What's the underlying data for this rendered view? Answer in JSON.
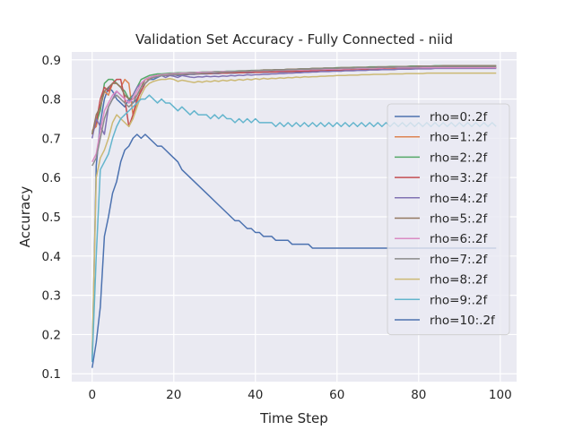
{
  "chart_data": {
    "type": "line",
    "title": "Validation Set Accuracy - Fully Connected - niid",
    "xlabel": "Time Step",
    "ylabel": "Accuracy",
    "xlim": [
      -5,
      104
    ],
    "ylim": [
      0.08,
      0.92
    ],
    "xticks": [
      0,
      20,
      40,
      60,
      80,
      100
    ],
    "yticks": [
      0.1,
      0.2,
      0.3,
      0.4,
      0.5,
      0.6,
      0.7,
      0.8,
      0.9
    ],
    "grid": true,
    "legend_position": "right",
    "series": [
      {
        "name": "rho=0:.2f",
        "color": "#4c72b0",
        "values": [
          0.13,
          0.63,
          0.74,
          0.8,
          0.83,
          0.82,
          0.8,
          0.79,
          0.78,
          0.8,
          0.79,
          0.8,
          0.82,
          0.84,
          0.85,
          0.85,
          0.855,
          0.86,
          0.86,
          0.86,
          0.862,
          0.86,
          0.862,
          0.862,
          0.863,
          0.863,
          0.864,
          0.864,
          0.864,
          0.865,
          0.865,
          0.865,
          0.866,
          0.866,
          0.866,
          0.866,
          0.867,
          0.867,
          0.867,
          0.867,
          0.868,
          0.868,
          0.868,
          0.868,
          0.869,
          0.869,
          0.869,
          0.869,
          0.87,
          0.87,
          0.87,
          0.87,
          0.871,
          0.871,
          0.871,
          0.871,
          0.872,
          0.872,
          0.872,
          0.872,
          0.873,
          0.873,
          0.873,
          0.873,
          0.874,
          0.874,
          0.874,
          0.874,
          0.875,
          0.875,
          0.875,
          0.875,
          0.876,
          0.876,
          0.876,
          0.876,
          0.877,
          0.877,
          0.877,
          0.877,
          0.878,
          0.878,
          0.878,
          0.878,
          0.879,
          0.879,
          0.879,
          0.879,
          0.88,
          0.88,
          0.88,
          0.88,
          0.88,
          0.88,
          0.88,
          0.88,
          0.88,
          0.88,
          0.88,
          0.88
        ]
      },
      {
        "name": "rho=1:.2f",
        "color": "#dd8452",
        "values": [
          0.72,
          0.73,
          0.78,
          0.82,
          0.81,
          0.84,
          0.84,
          0.83,
          0.85,
          0.84,
          0.76,
          0.79,
          0.83,
          0.85,
          0.85,
          0.858,
          0.86,
          0.862,
          0.864,
          0.864,
          0.865,
          0.865,
          0.866,
          0.866,
          0.867,
          0.867,
          0.868,
          0.868,
          0.868,
          0.869,
          0.869,
          0.869,
          0.87,
          0.87,
          0.87,
          0.87,
          0.871,
          0.871,
          0.871,
          0.871,
          0.872,
          0.872,
          0.872,
          0.872,
          0.873,
          0.873,
          0.873,
          0.873,
          0.874,
          0.874,
          0.874,
          0.874,
          0.875,
          0.875,
          0.875,
          0.875,
          0.876,
          0.876,
          0.876,
          0.876,
          0.877,
          0.877,
          0.877,
          0.877,
          0.878,
          0.878,
          0.878,
          0.878,
          0.879,
          0.879,
          0.879,
          0.879,
          0.88,
          0.88,
          0.88,
          0.88,
          0.88,
          0.88,
          0.88,
          0.88,
          0.88,
          0.88,
          0.88,
          0.88,
          0.88,
          0.88,
          0.88,
          0.88,
          0.88,
          0.88,
          0.88,
          0.88,
          0.88,
          0.88,
          0.88,
          0.88,
          0.88,
          0.88,
          0.88,
          0.88
        ]
      },
      {
        "name": "rho=2:.2f",
        "color": "#55a868",
        "values": [
          0.715,
          0.74,
          0.77,
          0.84,
          0.85,
          0.85,
          0.84,
          0.83,
          0.82,
          0.8,
          0.81,
          0.83,
          0.85,
          0.855,
          0.86,
          0.862,
          0.864,
          0.864,
          0.865,
          0.866,
          0.866,
          0.867,
          0.867,
          0.867,
          0.868,
          0.868,
          0.868,
          0.869,
          0.869,
          0.869,
          0.87,
          0.87,
          0.87,
          0.871,
          0.871,
          0.871,
          0.872,
          0.872,
          0.872,
          0.873,
          0.873,
          0.873,
          0.874,
          0.874,
          0.874,
          0.875,
          0.875,
          0.875,
          0.876,
          0.876,
          0.876,
          0.877,
          0.877,
          0.877,
          0.878,
          0.878,
          0.878,
          0.879,
          0.879,
          0.879,
          0.88,
          0.88,
          0.88,
          0.88,
          0.881,
          0.881,
          0.881,
          0.881,
          0.882,
          0.882,
          0.882,
          0.882,
          0.882,
          0.883,
          0.883,
          0.883,
          0.883,
          0.883,
          0.884,
          0.884,
          0.884,
          0.884,
          0.884,
          0.884,
          0.885,
          0.885,
          0.885,
          0.885,
          0.885,
          0.885,
          0.885,
          0.885,
          0.885,
          0.885,
          0.885,
          0.885,
          0.885,
          0.885,
          0.885,
          0.885
        ]
      },
      {
        "name": "rho=3:.2f",
        "color": "#c44e52",
        "values": [
          0.71,
          0.74,
          0.8,
          0.83,
          0.82,
          0.84,
          0.85,
          0.85,
          0.8,
          0.73,
          0.76,
          0.8,
          0.82,
          0.84,
          0.85,
          0.856,
          0.858,
          0.86,
          0.86,
          0.861,
          0.862,
          0.862,
          0.863,
          0.863,
          0.864,
          0.864,
          0.864,
          0.865,
          0.865,
          0.865,
          0.866,
          0.866,
          0.866,
          0.866,
          0.867,
          0.867,
          0.867,
          0.867,
          0.868,
          0.868,
          0.868,
          0.868,
          0.869,
          0.869,
          0.869,
          0.869,
          0.87,
          0.87,
          0.87,
          0.87,
          0.871,
          0.871,
          0.871,
          0.871,
          0.872,
          0.872,
          0.872,
          0.872,
          0.873,
          0.873,
          0.873,
          0.873,
          0.874,
          0.874,
          0.874,
          0.874,
          0.875,
          0.875,
          0.875,
          0.875,
          0.876,
          0.876,
          0.876,
          0.876,
          0.877,
          0.877,
          0.877,
          0.877,
          0.878,
          0.878,
          0.878,
          0.878,
          0.878,
          0.879,
          0.879,
          0.879,
          0.879,
          0.879,
          0.88,
          0.88,
          0.88,
          0.88,
          0.88,
          0.88,
          0.88,
          0.88,
          0.88,
          0.88,
          0.88,
          0.88
        ]
      },
      {
        "name": "rho=4:.2f",
        "color": "#8172b3",
        "values": [
          0.7,
          0.75,
          0.73,
          0.71,
          0.78,
          0.8,
          0.82,
          0.81,
          0.8,
          0.79,
          0.81,
          0.83,
          0.84,
          0.85,
          0.855,
          0.858,
          0.86,
          0.86,
          0.855,
          0.86,
          0.858,
          0.855,
          0.86,
          0.858,
          0.856,
          0.855,
          0.857,
          0.856,
          0.858,
          0.857,
          0.858,
          0.857,
          0.859,
          0.858,
          0.86,
          0.859,
          0.861,
          0.86,
          0.862,
          0.861,
          0.862,
          0.862,
          0.863,
          0.863,
          0.864,
          0.864,
          0.865,
          0.865,
          0.866,
          0.866,
          0.867,
          0.867,
          0.868,
          0.868,
          0.869,
          0.869,
          0.87,
          0.87,
          0.87,
          0.871,
          0.871,
          0.871,
          0.872,
          0.872,
          0.872,
          0.873,
          0.873,
          0.873,
          0.874,
          0.874,
          0.874,
          0.875,
          0.875,
          0.875,
          0.875,
          0.876,
          0.876,
          0.876,
          0.876,
          0.877,
          0.877,
          0.877,
          0.877,
          0.877,
          0.878,
          0.878,
          0.878,
          0.878,
          0.878,
          0.878,
          0.878,
          0.878,
          0.878,
          0.878,
          0.878,
          0.878,
          0.878,
          0.878,
          0.878,
          0.878
        ]
      },
      {
        "name": "rho=5:.2f",
        "color": "#937860",
        "values": [
          0.71,
          0.76,
          0.78,
          0.82,
          0.83,
          0.84,
          0.84,
          0.83,
          0.81,
          0.8,
          0.8,
          0.81,
          0.83,
          0.85,
          0.855,
          0.857,
          0.859,
          0.86,
          0.862,
          0.862,
          0.863,
          0.863,
          0.864,
          0.864,
          0.865,
          0.865,
          0.866,
          0.866,
          0.867,
          0.867,
          0.868,
          0.868,
          0.869,
          0.869,
          0.87,
          0.87,
          0.871,
          0.871,
          0.872,
          0.872,
          0.873,
          0.873,
          0.874,
          0.874,
          0.874,
          0.875,
          0.875,
          0.875,
          0.876,
          0.876,
          0.876,
          0.877,
          0.877,
          0.877,
          0.878,
          0.878,
          0.878,
          0.879,
          0.879,
          0.879,
          0.879,
          0.88,
          0.88,
          0.88,
          0.88,
          0.881,
          0.881,
          0.881,
          0.881,
          0.881,
          0.882,
          0.882,
          0.882,
          0.882,
          0.882,
          0.883,
          0.883,
          0.883,
          0.883,
          0.883,
          0.884,
          0.884,
          0.884,
          0.884,
          0.884,
          0.884,
          0.885,
          0.885,
          0.885,
          0.885,
          0.885,
          0.885,
          0.885,
          0.885,
          0.885,
          0.885,
          0.885,
          0.885,
          0.885,
          0.885
        ]
      },
      {
        "name": "rho=6:.2f",
        "color": "#da8bc3",
        "values": [
          0.64,
          0.66,
          0.72,
          0.77,
          0.79,
          0.81,
          0.82,
          0.81,
          0.8,
          0.79,
          0.8,
          0.82,
          0.84,
          0.85,
          0.855,
          0.858,
          0.86,
          0.862,
          0.863,
          0.864,
          0.865,
          0.865,
          0.866,
          0.866,
          0.867,
          0.867,
          0.868,
          0.868,
          0.868,
          0.869,
          0.869,
          0.869,
          0.87,
          0.87,
          0.87,
          0.87,
          0.871,
          0.871,
          0.871,
          0.871,
          0.872,
          0.872,
          0.872,
          0.872,
          0.873,
          0.873,
          0.873,
          0.873,
          0.874,
          0.874,
          0.874,
          0.874,
          0.875,
          0.875,
          0.875,
          0.875,
          0.876,
          0.876,
          0.876,
          0.876,
          0.877,
          0.877,
          0.877,
          0.877,
          0.878,
          0.878,
          0.878,
          0.878,
          0.879,
          0.879,
          0.879,
          0.879,
          0.88,
          0.88,
          0.88,
          0.88,
          0.88,
          0.88,
          0.88,
          0.88,
          0.88,
          0.88,
          0.88,
          0.88,
          0.88,
          0.88,
          0.88,
          0.88,
          0.88,
          0.88,
          0.88,
          0.88,
          0.88,
          0.88,
          0.88,
          0.88,
          0.88,
          0.88,
          0.88,
          0.88
        ]
      },
      {
        "name": "rho=7:.2f",
        "color": "#8c8c8c",
        "values": [
          0.63,
          0.65,
          0.7,
          0.75,
          0.78,
          0.8,
          0.81,
          0.8,
          0.79,
          0.78,
          0.79,
          0.81,
          0.83,
          0.84,
          0.85,
          0.855,
          0.857,
          0.86,
          0.86,
          0.862,
          0.862,
          0.863,
          0.863,
          0.864,
          0.864,
          0.865,
          0.865,
          0.866,
          0.866,
          0.867,
          0.867,
          0.868,
          0.868,
          0.869,
          0.869,
          0.87,
          0.87,
          0.871,
          0.871,
          0.872,
          0.872,
          0.872,
          0.873,
          0.873,
          0.873,
          0.874,
          0.874,
          0.874,
          0.875,
          0.875,
          0.875,
          0.876,
          0.876,
          0.876,
          0.877,
          0.877,
          0.877,
          0.878,
          0.878,
          0.878,
          0.878,
          0.879,
          0.879,
          0.879,
          0.879,
          0.88,
          0.88,
          0.88,
          0.88,
          0.88,
          0.881,
          0.881,
          0.881,
          0.881,
          0.881,
          0.882,
          0.882,
          0.882,
          0.882,
          0.882,
          0.882,
          0.883,
          0.883,
          0.883,
          0.883,
          0.883,
          0.883,
          0.883,
          0.883,
          0.883,
          0.883,
          0.883,
          0.883,
          0.883,
          0.883,
          0.883,
          0.883,
          0.883,
          0.883,
          0.883
        ]
      },
      {
        "name": "rho=8:.2f",
        "color": "#ccb974",
        "values": [
          0.15,
          0.6,
          0.65,
          0.67,
          0.7,
          0.74,
          0.76,
          0.75,
          0.74,
          0.73,
          0.75,
          0.78,
          0.81,
          0.83,
          0.84,
          0.845,
          0.848,
          0.85,
          0.85,
          0.852,
          0.85,
          0.845,
          0.848,
          0.846,
          0.844,
          0.842,
          0.845,
          0.843,
          0.846,
          0.844,
          0.847,
          0.845,
          0.848,
          0.846,
          0.849,
          0.847,
          0.85,
          0.848,
          0.851,
          0.849,
          0.852,
          0.85,
          0.853,
          0.851,
          0.853,
          0.852,
          0.854,
          0.853,
          0.855,
          0.854,
          0.856,
          0.855,
          0.857,
          0.856,
          0.857,
          0.857,
          0.858,
          0.858,
          0.859,
          0.859,
          0.86,
          0.86,
          0.86,
          0.861,
          0.861,
          0.861,
          0.862,
          0.862,
          0.862,
          0.863,
          0.863,
          0.863,
          0.863,
          0.864,
          0.864,
          0.864,
          0.864,
          0.865,
          0.865,
          0.865,
          0.865,
          0.865,
          0.866,
          0.866,
          0.866,
          0.866,
          0.866,
          0.866,
          0.866,
          0.866,
          0.866,
          0.866,
          0.866,
          0.866,
          0.866,
          0.866,
          0.866,
          0.866,
          0.866,
          0.866
        ]
      },
      {
        "name": "rho=9:.2f",
        "color": "#64b5cd",
        "values": [
          0.13,
          0.4,
          0.62,
          0.64,
          0.66,
          0.7,
          0.73,
          0.75,
          0.76,
          0.77,
          0.78,
          0.79,
          0.8,
          0.8,
          0.81,
          0.8,
          0.79,
          0.8,
          0.79,
          0.79,
          0.78,
          0.77,
          0.78,
          0.77,
          0.76,
          0.77,
          0.76,
          0.76,
          0.76,
          0.75,
          0.76,
          0.75,
          0.76,
          0.75,
          0.75,
          0.74,
          0.75,
          0.74,
          0.75,
          0.74,
          0.75,
          0.74,
          0.74,
          0.74,
          0.74,
          0.73,
          0.74,
          0.73,
          0.74,
          0.73,
          0.74,
          0.73,
          0.74,
          0.73,
          0.74,
          0.73,
          0.74,
          0.73,
          0.74,
          0.73,
          0.74,
          0.73,
          0.74,
          0.73,
          0.74,
          0.73,
          0.74,
          0.73,
          0.74,
          0.73,
          0.74,
          0.73,
          0.74,
          0.73,
          0.74,
          0.73,
          0.74,
          0.73,
          0.74,
          0.73,
          0.74,
          0.73,
          0.74,
          0.73,
          0.74,
          0.73,
          0.74,
          0.73,
          0.74,
          0.73,
          0.74,
          0.73,
          0.74,
          0.73,
          0.74,
          0.73,
          0.74,
          0.73,
          0.74,
          0.73
        ]
      },
      {
        "name": "rho=10:.2f",
        "color": "#4c72b0",
        "values": [
          0.115,
          0.18,
          0.27,
          0.45,
          0.5,
          0.56,
          0.59,
          0.64,
          0.67,
          0.68,
          0.7,
          0.71,
          0.7,
          0.71,
          0.7,
          0.69,
          0.68,
          0.68,
          0.67,
          0.66,
          0.65,
          0.64,
          0.62,
          0.61,
          0.6,
          0.59,
          0.58,
          0.57,
          0.56,
          0.55,
          0.54,
          0.53,
          0.52,
          0.51,
          0.5,
          0.49,
          0.49,
          0.48,
          0.47,
          0.47,
          0.46,
          0.46,
          0.45,
          0.45,
          0.45,
          0.44,
          0.44,
          0.44,
          0.44,
          0.43,
          0.43,
          0.43,
          0.43,
          0.43,
          0.42,
          0.42,
          0.42,
          0.42,
          0.42,
          0.42,
          0.42,
          0.42,
          0.42,
          0.42,
          0.42,
          0.42,
          0.42,
          0.42,
          0.42,
          0.42,
          0.42,
          0.42,
          0.42,
          0.42,
          0.42,
          0.42,
          0.42,
          0.42,
          0.42,
          0.42,
          0.42,
          0.42,
          0.42,
          0.42,
          0.42,
          0.42,
          0.42,
          0.42,
          0.42,
          0.42,
          0.42,
          0.42,
          0.42,
          0.42,
          0.42,
          0.42,
          0.42,
          0.42,
          0.42,
          0.42
        ]
      }
    ]
  }
}
